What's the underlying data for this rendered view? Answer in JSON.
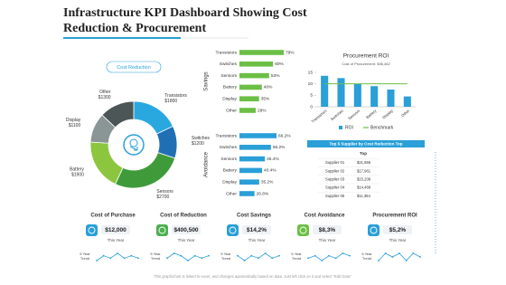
{
  "header": {
    "title": "Infrastructure KPI Dashboard Showing Cost Reduction & Procurement"
  },
  "chart_data": [
    {
      "type": "donut",
      "title": "Cost Reduction",
      "categories": [
        "Transistors",
        "Switches",
        "Sensors",
        "Battery",
        "Display",
        "Other"
      ],
      "values": [
        1800,
        1200,
        2700,
        1900,
        1100,
        1300
      ],
      "value_labels": [
        "$1800",
        "$1200",
        "$2700",
        "$1900",
        "$1100",
        "$1300"
      ],
      "colors": [
        "#29a8e0",
        "#1f6fb5",
        "#3f9b3a",
        "#8cc63f",
        "#8a9596",
        "#4d5656"
      ]
    },
    {
      "type": "hbar",
      "axis_label": "Savings",
      "categories": [
        "Transistors",
        "Switches",
        "Sensors",
        "Battery",
        "Display",
        "Other"
      ],
      "values": [
        79,
        60,
        53,
        40,
        35,
        29
      ],
      "value_labels": [
        "79%",
        "60%",
        "53%",
        "40%",
        "35%",
        "29%"
      ],
      "color": "#6cbf45",
      "xlim": [
        0,
        100
      ]
    },
    {
      "type": "hbar",
      "axis_label": "Avoidance",
      "categories": [
        "Transistors",
        "Switches",
        "Sensors",
        "Battery",
        "Display",
        "Other"
      ],
      "values": [
        66.2,
        56.2,
        45.4,
        40.4,
        35.2,
        26.8
      ],
      "value_labels": [
        "66.2%",
        "56.2%",
        "45.4%",
        "40.4%",
        "35.2%",
        "26.8%"
      ],
      "color": "#2a9fd8",
      "xlim": [
        0,
        100
      ]
    },
    {
      "type": "bar",
      "title": "Procurement ROI",
      "subtitle": "Cost of Procurement: $36,462",
      "categories": [
        "Transistors",
        "Switches",
        "Sensors",
        "Battery",
        "Display",
        "Other"
      ],
      "series": [
        {
          "name": "ROI",
          "color": "#2a9fd8",
          "values": [
            13.5,
            12.5,
            10,
            9,
            7.5,
            4.5
          ]
        },
        {
          "name": "Benchmark",
          "color": "#6cbf45",
          "type": "line",
          "values": [
            10,
            10,
            10,
            10,
            10,
            10
          ]
        }
      ],
      "ylim": [
        0,
        15
      ],
      "yticks": [
        0,
        5,
        10,
        15
      ]
    }
  ],
  "table": {
    "title": "Top 5 Supplier by Cost Reduction Top",
    "column": "Top",
    "rows": [
      [
        "Supplier 01",
        "$21,856"
      ],
      [
        "Supplier 02",
        "$17,961"
      ],
      [
        "Supplier 03",
        "$15,208"
      ],
      [
        "Supplier 04",
        "$14,468"
      ],
      [
        "Supplier 05",
        "$11,364"
      ]
    ]
  },
  "kpis": [
    {
      "title": "Cost of Purchase",
      "value": "$12,000",
      "period": "This Year",
      "trend_label": "5 Year Trend",
      "color": "#2a9fd8",
      "trend": [
        4,
        6,
        5,
        7,
        5,
        6,
        5
      ]
    },
    {
      "title": "Cost of Reduction",
      "value": "$400,500",
      "period": "This Year",
      "trend_label": "5 Year Trend",
      "color": "#4caf50",
      "trend": [
        5,
        7,
        6,
        4,
        6,
        5,
        6
      ]
    },
    {
      "title": "Cost Savings",
      "value": "$14,2%",
      "period": "This Year",
      "trend_label": "5 Year Trend",
      "color": "#2a9fd8",
      "trend": [
        6,
        4,
        6,
        5,
        7,
        5,
        6
      ]
    },
    {
      "title": "Cost Avoidance",
      "value": "$8,3%",
      "period": "This Year",
      "trend_label": "5 Year Trend",
      "color": "#6cbf45",
      "trend": [
        5,
        6,
        4,
        6,
        5,
        7,
        6
      ]
    },
    {
      "title": "Procurement ROI",
      "value": "$5,2%",
      "period": "This Year",
      "trend_label": "5 Year Trend",
      "color": "#2a9fd8",
      "trend": [
        4,
        6,
        5,
        6,
        4,
        6,
        5
      ]
    }
  ],
  "footer": "This graph/chart is linked to excel, and changes automatically based on data. Just left click on it and select \"Edit Data\"."
}
